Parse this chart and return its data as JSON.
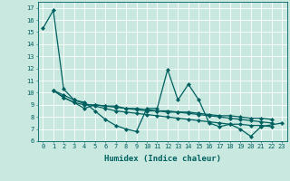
{
  "xlabel": "Humidex (Indice chaleur)",
  "bg_color": "#c8e8e0",
  "grid_color": "#ffffff",
  "line_color": "#006060",
  "xlim": [
    -0.5,
    23.5
  ],
  "ylim": [
    6,
    17.5
  ],
  "yticks": [
    6,
    7,
    8,
    9,
    10,
    11,
    12,
    13,
    14,
    15,
    16,
    17
  ],
  "xticks": [
    0,
    1,
    2,
    3,
    4,
    5,
    6,
    7,
    8,
    9,
    10,
    11,
    12,
    13,
    14,
    15,
    16,
    17,
    18,
    19,
    20,
    21,
    22,
    23
  ],
  "series": [
    [
      15.3,
      16.8,
      10.3,
      9.4,
      9.2,
      8.5,
      7.8,
      7.3,
      7.0,
      6.8,
      8.7,
      8.7,
      11.9,
      9.4,
      10.7,
      9.4,
      7.5,
      7.2,
      7.4,
      7.0,
      6.4,
      7.2,
      7.5
    ],
    [
      10.2,
      9.6,
      9.2,
      8.7,
      9.0,
      8.9,
      8.9,
      8.7,
      8.6,
      8.5,
      8.5,
      8.4,
      8.4,
      8.3,
      8.2,
      8.1,
      8.0,
      7.9,
      7.8,
      7.7,
      7.6,
      7.5
    ],
    [
      10.2,
      9.6,
      9.2,
      9.0,
      9.0,
      8.9,
      8.8,
      8.7,
      8.7,
      8.6,
      8.5,
      8.5,
      8.4,
      8.4,
      8.3,
      8.2,
      8.1,
      8.1,
      8.0,
      7.9,
      7.9,
      7.8
    ],
    [
      10.2,
      9.8,
      9.4,
      9.1,
      8.9,
      8.7,
      8.5,
      8.4,
      8.3,
      8.2,
      8.1,
      8.0,
      7.9,
      7.8,
      7.7,
      7.6,
      7.5,
      7.4,
      7.4,
      7.3,
      7.3,
      7.2
    ]
  ],
  "series_x": [
    [
      0,
      1,
      2,
      3,
      4,
      5,
      6,
      7,
      8,
      9,
      10,
      11,
      12,
      13,
      14,
      15,
      16,
      17,
      18,
      19,
      20,
      21,
      23
    ],
    [
      1,
      2,
      3,
      4,
      5,
      6,
      7,
      8,
      9,
      10,
      11,
      12,
      13,
      14,
      15,
      16,
      17,
      18,
      19,
      20,
      21,
      22
    ],
    [
      1,
      2,
      3,
      4,
      5,
      6,
      7,
      8,
      9,
      10,
      11,
      12,
      13,
      14,
      15,
      16,
      17,
      18,
      19,
      20,
      21,
      22
    ],
    [
      1,
      2,
      3,
      4,
      5,
      6,
      7,
      8,
      9,
      10,
      11,
      12,
      13,
      14,
      15,
      16,
      17,
      18,
      19,
      20,
      21,
      22
    ]
  ],
  "marker": "D",
  "marker_size": 2.0,
  "linewidth": 0.9,
  "font_size_label": 6.5,
  "font_size_tick": 5.0
}
